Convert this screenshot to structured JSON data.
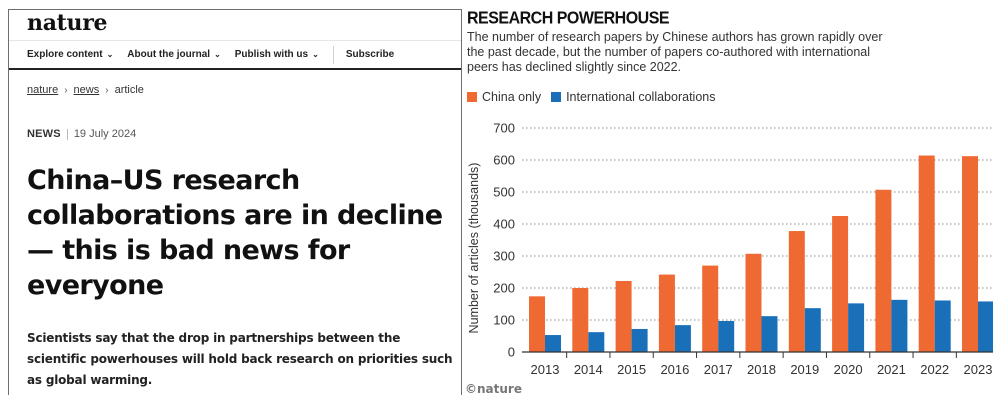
{
  "article": {
    "logo": "nature",
    "nav": {
      "explore": "Explore content",
      "about": "About the journal",
      "publish": "Publish with us",
      "subscribe": "Subscribe"
    },
    "breadcrumb": {
      "home": "nature",
      "section": "news",
      "current": "article"
    },
    "meta": {
      "type": "NEWS",
      "date": "19 July 2024"
    },
    "headline": "China–US research collaborations are in decline — this is bad news for everyone",
    "standfirst": "Scientists say that the drop in partnerships between the scientific powerhouses will hold back research on priorities such as global warming."
  },
  "chart_panel": {
    "credit": "©nature"
  },
  "chart_data": {
    "type": "bar",
    "title": "RESEARCH POWERHOUSE",
    "subtitle": "The number of research papers by Chinese authors has grown rapidly over the past decade, but the number of papers co-authored with international peers has declined slightly since 2022.",
    "xlabel": "",
    "ylabel": "Number of articles (thousands)",
    "ylim": [
      0,
      700
    ],
    "yticks": [
      0,
      100,
      200,
      300,
      400,
      500,
      600,
      700
    ],
    "grid": "horizontal-dotted",
    "legend_position": "top-left",
    "categories": [
      "2013",
      "2014",
      "2015",
      "2016",
      "2017",
      "2018",
      "2019",
      "2020",
      "2021",
      "2022",
      "2023"
    ],
    "series": [
      {
        "name": "China only",
        "color": "#ef6a32",
        "values": [
          174,
          200,
          222,
          242,
          270,
          307,
          378,
          425,
          507,
          614,
          612
        ]
      },
      {
        "name": "International collaborations",
        "color": "#1a70b8",
        "values": [
          53,
          62,
          72,
          84,
          97,
          112,
          137,
          152,
          163,
          161,
          158
        ]
      }
    ]
  }
}
